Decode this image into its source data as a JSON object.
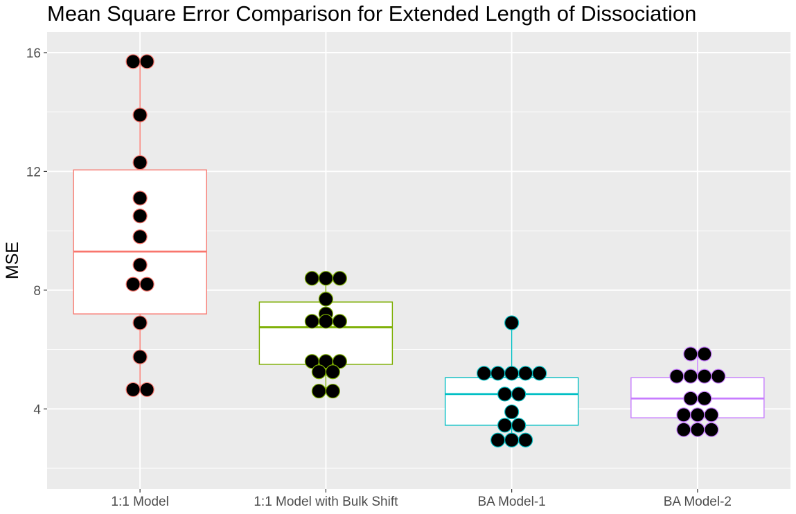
{
  "chart_data": {
    "type": "box",
    "title": "Mean Square Error Comparison for Extended Length of Dissociation",
    "xlabel": "",
    "ylabel": "MSE",
    "ylim": [
      1.3,
      16.7
    ],
    "yticks": [
      4,
      8,
      12,
      16
    ],
    "grid": true,
    "legend": "none",
    "background_color": "#ebebeb",
    "point_color": "#000000",
    "categories": [
      "1:1 Model",
      "1:1 Model with Bulk Shift",
      "BA Model-1",
      "BA Model-2"
    ],
    "series": [
      {
        "color": "#f8766d",
        "box": {
          "min": 4.65,
          "q1": 7.2,
          "median": 9.3,
          "q3": 12.05,
          "max": 15.7
        },
        "points": [
          15.7,
          15.7,
          13.9,
          12.3,
          11.1,
          10.5,
          9.8,
          8.85,
          8.2,
          8.2,
          6.9,
          5.75,
          4.65,
          4.65
        ]
      },
      {
        "color": "#7cae00",
        "box": {
          "min": 4.6,
          "q1": 5.5,
          "median": 6.75,
          "q3": 7.6,
          "max": 8.4
        },
        "points": [
          8.4,
          8.4,
          8.4,
          7.7,
          7.2,
          6.95,
          6.95,
          6.95,
          5.6,
          5.6,
          5.6,
          5.25,
          5.25,
          4.6,
          4.6
        ]
      },
      {
        "color": "#00bfc4",
        "box": {
          "min": 2.95,
          "q1": 3.45,
          "median": 4.5,
          "q3": 5.05,
          "max": 6.9
        },
        "points": [
          6.9,
          5.2,
          5.2,
          5.2,
          5.2,
          5.2,
          4.5,
          4.5,
          3.9,
          3.45,
          3.45,
          2.95,
          2.95,
          2.95
        ]
      },
      {
        "color": "#c77cff",
        "box": {
          "min": 3.3,
          "q1": 3.7,
          "median": 4.35,
          "q3": 5.05,
          "max": 5.85
        },
        "points": [
          5.85,
          5.85,
          5.1,
          5.1,
          5.1,
          5.1,
          4.35,
          4.35,
          3.8,
          3.8,
          3.8,
          3.3,
          3.3,
          3.3
        ]
      }
    ]
  }
}
